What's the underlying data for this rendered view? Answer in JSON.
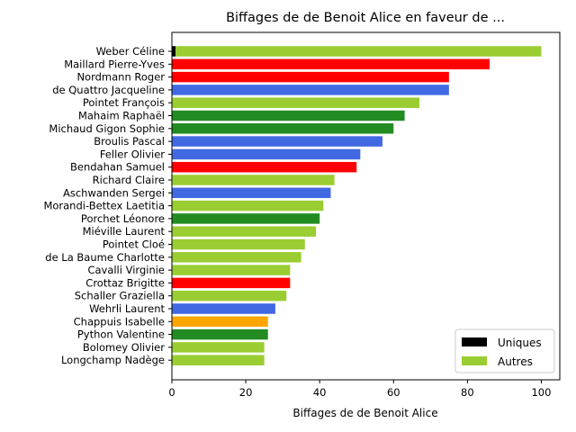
{
  "chart_data": {
    "type": "bar",
    "orientation": "horizontal",
    "title": "Biffages de de Benoit Alice en faveur de ...",
    "xlabel": "Biffages de de Benoit Alice",
    "ylabel": "",
    "xlim": [
      0,
      105
    ],
    "xticks": [
      "0",
      "20",
      "40",
      "60",
      "80",
      "100"
    ],
    "grid": false,
    "legend_position": "lower-right",
    "legend": [
      {
        "label": "Uniques",
        "color": "#000000"
      },
      {
        "label": "Autres",
        "color": "#9acd32"
      }
    ],
    "categories": [
      "Weber Céline",
      "Maillard Pierre-Yves",
      "Nordmann Roger",
      "de Quattro Jacqueline",
      "Pointet François",
      "Mahaim Raphaël",
      "Michaud Gigon Sophie",
      "Broulis Pascal",
      "Feller Olivier",
      "Bendahan Samuel",
      "Richard Claire",
      "Aschwanden Sergei",
      "Morandi-Bettex Laetitia",
      "Porchet Léonore",
      "Miéville Laurent",
      "Pointet Cloé",
      "de La Baume Charlotte",
      "Cavalli Virginie",
      "Crottaz Brigitte",
      "Schaller Graziella",
      "Wehrli Laurent",
      "Chappuis Isabelle",
      "Python Valentine",
      "Bolomey Olivier",
      "Longchamp Nadège"
    ],
    "series": [
      {
        "name": "Uniques",
        "values": [
          1,
          0,
          0,
          0,
          0,
          0,
          0,
          0,
          0,
          0,
          0,
          0,
          0,
          0,
          0,
          0,
          0,
          0,
          0,
          0,
          0,
          0,
          0,
          0,
          0
        ]
      },
      {
        "name": "Autres",
        "values": [
          99,
          86,
          75,
          75,
          67,
          63,
          60,
          57,
          51,
          50,
          44,
          43,
          41,
          40,
          39,
          36,
          35,
          32,
          32,
          31,
          28,
          26,
          26,
          25,
          25
        ]
      }
    ],
    "bar_colors": [
      "#9acd32",
      "#ff0000",
      "#ff0000",
      "#4169e1",
      "#9acd32",
      "#228b22",
      "#228b22",
      "#4169e1",
      "#4169e1",
      "#ff0000",
      "#9acd32",
      "#4169e1",
      "#9acd32",
      "#228b22",
      "#9acd32",
      "#9acd32",
      "#9acd32",
      "#9acd32",
      "#ff0000",
      "#9acd32",
      "#4169e1",
      "#ffa500",
      "#228b22",
      "#9acd32",
      "#9acd32"
    ]
  }
}
